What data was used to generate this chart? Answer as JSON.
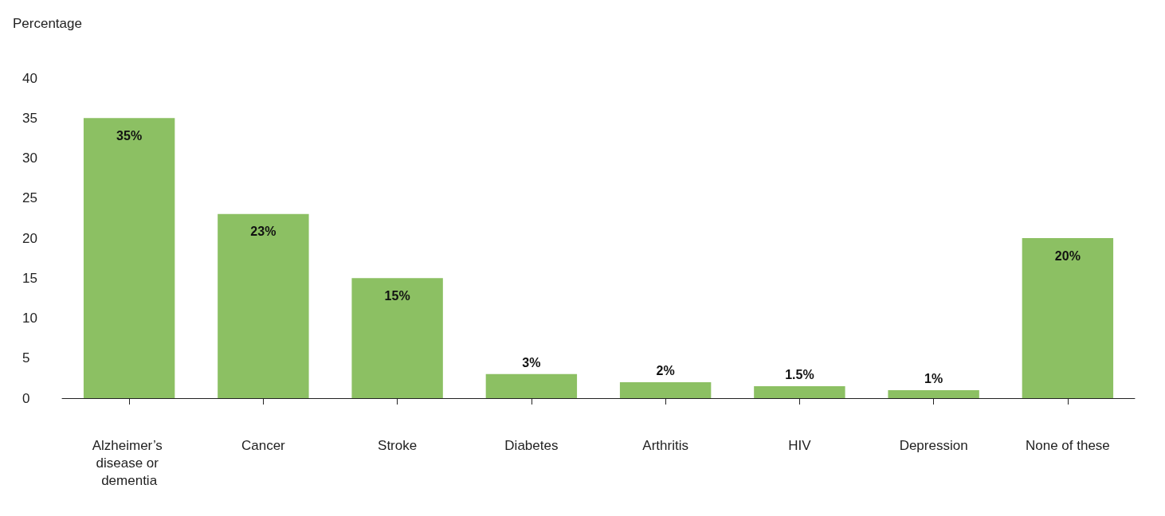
{
  "chart_data": {
    "type": "bar",
    "ylabel": "Percentage",
    "categories": [
      "Alzheimer’s disease or dementia",
      "Cancer",
      "Stroke",
      "Diabetes",
      "Arthritis",
      "HIV",
      "Depression",
      "None of these"
    ],
    "values": [
      35,
      23,
      15,
      3,
      2,
      1.5,
      1,
      20
    ],
    "value_labels": [
      "35%",
      "23%",
      "15%",
      "3%",
      "2%",
      "1.5%",
      "1%",
      "20%"
    ],
    "color": "#8cc063",
    "ylim": [
      0,
      40
    ],
    "yticks": [
      0,
      5,
      10,
      15,
      20,
      25,
      30,
      35,
      40
    ]
  }
}
